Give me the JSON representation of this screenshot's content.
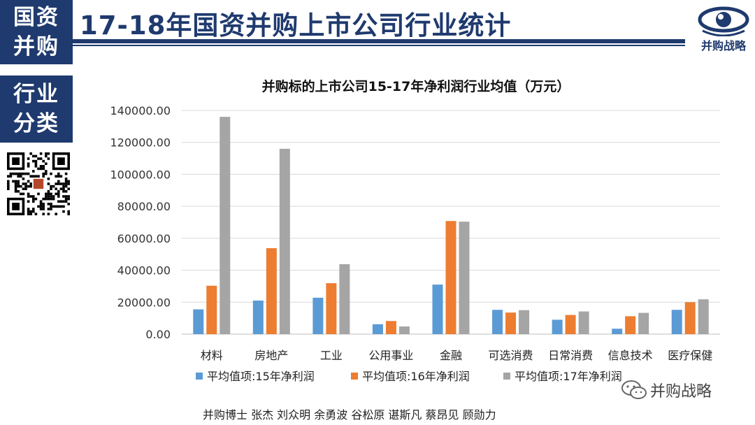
{
  "side_tags": {
    "tag1_line1": "国资",
    "tag1_line2": "并购",
    "tag2_line1": "行业",
    "tag2_line2": "分类"
  },
  "header": {
    "title": "17-18年国资并购上市公司行业统计",
    "logo_text": "并购战略",
    "brand_color": "#1f3a6e"
  },
  "watermark": {
    "text": "并购战略"
  },
  "authors": "并购博士 张杰 刘众明 余勇波 谷松原 谌斯凡 蔡昂见 顾勋力",
  "chart_data": {
    "type": "bar",
    "title": "并购标的上市公司15-17年净利润行业均值（万元）",
    "categories": [
      "材料",
      "房地产",
      "工业",
      "公用事业",
      "金融",
      "可选消费",
      "日常消费",
      "信息技术",
      "医疗保健"
    ],
    "series": [
      {
        "name": "平均值项:15年净利润",
        "color": "#5b9bd5",
        "values": [
          15500,
          21000,
          22800,
          6200,
          31000,
          15200,
          9000,
          3400,
          15200
        ]
      },
      {
        "name": "平均值项:16年净利润",
        "color": "#ed7d31",
        "values": [
          30300,
          53800,
          31900,
          8200,
          70800,
          13500,
          12000,
          11200,
          20000
        ]
      },
      {
        "name": "平均值项:17年净利润",
        "color": "#a5a5a5",
        "values": [
          136000,
          116000,
          43800,
          4800,
          70400,
          15000,
          14200,
          13300,
          21800
        ]
      }
    ],
    "yticks": [
      "0.00",
      "20000.00",
      "40000.00",
      "60000.00",
      "80000.00",
      "100000.00",
      "120000.00",
      "140000.00"
    ],
    "ylim": [
      0,
      140000
    ],
    "grid": true,
    "legend": "bottom"
  }
}
